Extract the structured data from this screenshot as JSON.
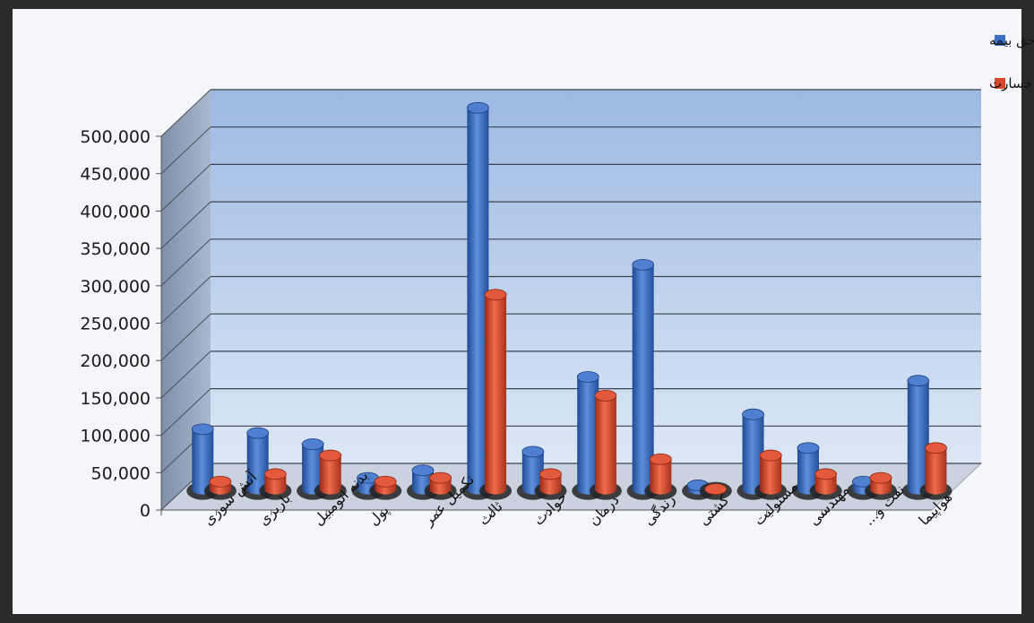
{
  "chart_data": {
    "type": "bar",
    "categories": [
      "آتش سوزی",
      "باربری",
      "بدنه اتومبیل",
      "پول",
      "تکمیل عمر",
      "ثالث",
      "حوادث",
      "درمان",
      "زندگی",
      "کشتی",
      "مسئولیت",
      "مهندسی",
      "نفت و...",
      "هواپیما"
    ],
    "series": [
      {
        "name": "حق بیمه",
        "color": "#3a6fc4",
        "values": [
          80000,
          75000,
          60000,
          15000,
          25000,
          510000,
          50000,
          150000,
          300000,
          5000,
          100000,
          55000,
          10000,
          145000
        ]
      },
      {
        "name": "خسارت",
        "color": "#d9472b",
        "values": [
          10000,
          20000,
          45000,
          10000,
          15000,
          260000,
          20000,
          125000,
          40000,
          0,
          45000,
          20000,
          15000,
          55000
        ]
      }
    ],
    "ylim": [
      0,
      500000
    ],
    "yticks": [
      "0",
      "50,000",
      "100,000",
      "150,000",
      "200,000",
      "250,000",
      "300,000",
      "350,000",
      "400,000",
      "450,000",
      "500,000"
    ],
    "grid": true,
    "legend": "top-right"
  }
}
